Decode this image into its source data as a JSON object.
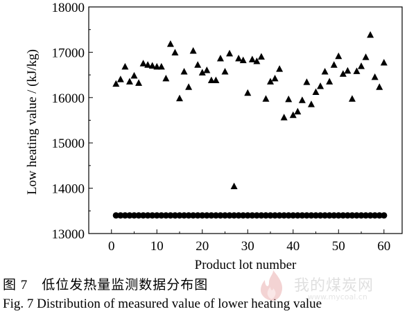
{
  "chart_data": {
    "type": "scatter",
    "xlabel": "Product lot number",
    "ylabel": "Low heating value / (kJ/kg)",
    "xlim": [
      -5,
      64
    ],
    "ylim": [
      13000,
      18000
    ],
    "xticks": [
      0,
      10,
      20,
      30,
      40,
      50,
      60
    ],
    "yticks": [
      13000,
      14000,
      15000,
      16000,
      17000,
      18000
    ],
    "grid": false,
    "series": [
      {
        "marker": "triangle",
        "x": [
          1,
          2,
          3,
          4,
          5,
          6,
          7,
          8,
          9,
          10,
          11,
          12,
          13,
          14,
          15,
          16,
          17,
          18,
          19,
          20,
          21,
          22,
          23,
          24,
          25,
          26,
          27,
          28,
          29,
          30,
          31,
          32,
          33,
          34,
          35,
          36,
          37,
          38,
          39,
          40,
          41,
          42,
          43,
          44,
          45,
          46,
          47,
          48,
          49,
          50,
          51,
          52,
          53,
          54,
          55,
          56,
          57,
          58,
          59,
          60
        ],
        "y": [
          16300,
          16400,
          16680,
          16350,
          16480,
          16320,
          16750,
          16720,
          16700,
          16680,
          16680,
          16420,
          17180,
          16990,
          15980,
          16570,
          16230,
          17030,
          16720,
          16550,
          16600,
          16380,
          16380,
          16860,
          16570,
          16970,
          14040,
          16860,
          16820,
          16100,
          16840,
          16800,
          16900,
          15970,
          16350,
          16420,
          16630,
          15560,
          15960,
          15610,
          15690,
          15940,
          16340,
          15850,
          16120,
          16250,
          16570,
          16350,
          16720,
          16910,
          16520,
          16590,
          15970,
          16580,
          16690,
          16890,
          17380,
          16450,
          16230,
          16770
        ]
      },
      {
        "marker": "circle",
        "x": [
          1,
          2,
          3,
          4,
          5,
          6,
          7,
          8,
          9,
          10,
          11,
          12,
          13,
          14,
          15,
          16,
          17,
          18,
          19,
          20,
          21,
          22,
          23,
          24,
          25,
          26,
          27,
          28,
          29,
          30,
          31,
          32,
          33,
          34,
          35,
          36,
          37,
          38,
          39,
          40,
          41,
          42,
          43,
          44,
          45,
          46,
          47,
          48,
          49,
          50,
          51,
          52,
          53,
          54,
          55,
          56,
          57,
          58,
          59,
          60
        ],
        "y": [
          13400,
          13400,
          13400,
          13400,
          13400,
          13400,
          13400,
          13400,
          13400,
          13400,
          13400,
          13400,
          13400,
          13400,
          13400,
          13400,
          13400,
          13400,
          13400,
          13400,
          13400,
          13400,
          13400,
          13400,
          13400,
          13400,
          13400,
          13400,
          13400,
          13400,
          13400,
          13400,
          13400,
          13400,
          13400,
          13400,
          13400,
          13400,
          13400,
          13400,
          13400,
          13400,
          13400,
          13400,
          13400,
          13400,
          13400,
          13400,
          13400,
          13400,
          13400,
          13400,
          13400,
          13400,
          13400,
          13400,
          13400,
          13400,
          13400,
          13400
        ]
      }
    ]
  },
  "caption": {
    "cn": "图 7　低位发热量监测数据分布图",
    "en": "Fig. 7    Distribution of measured value of lower heating value"
  },
  "watermark": {
    "text": "我的煤炭网",
    "url": "www.mycoal.cn"
  }
}
